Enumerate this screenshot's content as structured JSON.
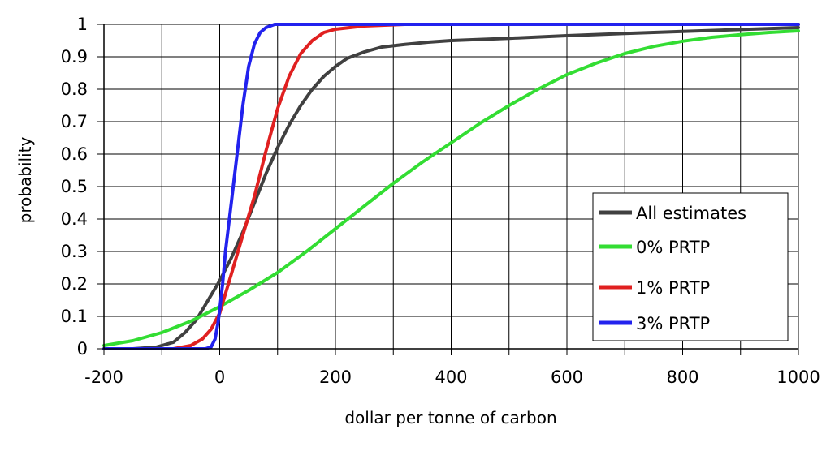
{
  "chart_data": {
    "type": "line",
    "title": "",
    "xlabel": "dollar per tonne of carbon",
    "ylabel": "probability",
    "xlim": [
      -200,
      1000
    ],
    "ylim": [
      0,
      1
    ],
    "grid": true,
    "legend_position": "lower-right",
    "x_ticks": [
      -200,
      -100,
      0,
      100,
      200,
      300,
      400,
      500,
      600,
      700,
      800,
      900,
      1000
    ],
    "x_tick_labels": [
      "-200",
      "0",
      "200",
      "400",
      "600",
      "800",
      "1000"
    ],
    "x_tick_label_values": [
      -200,
      0,
      200,
      400,
      600,
      800,
      1000
    ],
    "y_ticks": [
      0,
      0.1,
      0.2,
      0.3,
      0.4,
      0.5,
      0.6,
      0.7,
      0.8,
      0.9,
      1
    ],
    "y_tick_labels": [
      "0",
      "0.1",
      "0.2",
      "0.3",
      "0.4",
      "0.5",
      "0.6",
      "0.7",
      "0.8",
      "0.9",
      "1"
    ],
    "series": [
      {
        "name": "All estimates",
        "color": "#404040",
        "points": [
          [
            -200,
            0
          ],
          [
            -150,
            0
          ],
          [
            -110,
            0.005
          ],
          [
            -80,
            0.02
          ],
          [
            -60,
            0.05
          ],
          [
            -40,
            0.09
          ],
          [
            -20,
            0.15
          ],
          [
            0,
            0.21
          ],
          [
            20,
            0.28
          ],
          [
            40,
            0.36
          ],
          [
            60,
            0.45
          ],
          [
            80,
            0.54
          ],
          [
            100,
            0.62
          ],
          [
            120,
            0.69
          ],
          [
            140,
            0.75
          ],
          [
            160,
            0.8
          ],
          [
            180,
            0.84
          ],
          [
            200,
            0.87
          ],
          [
            220,
            0.895
          ],
          [
            250,
            0.915
          ],
          [
            280,
            0.93
          ],
          [
            320,
            0.938
          ],
          [
            360,
            0.945
          ],
          [
            400,
            0.95
          ],
          [
            500,
            0.957
          ],
          [
            600,
            0.965
          ],
          [
            700,
            0.972
          ],
          [
            800,
            0.978
          ],
          [
            900,
            0.984
          ],
          [
            1000,
            0.99
          ]
        ]
      },
      {
        "name": "0% PRTP",
        "color": "#33dd33",
        "points": [
          [
            -200,
            0.01
          ],
          [
            -150,
            0.025
          ],
          [
            -100,
            0.05
          ],
          [
            -50,
            0.085
          ],
          [
            0,
            0.13
          ],
          [
            50,
            0.18
          ],
          [
            100,
            0.235
          ],
          [
            150,
            0.3
          ],
          [
            200,
            0.37
          ],
          [
            250,
            0.44
          ],
          [
            300,
            0.51
          ],
          [
            350,
            0.575
          ],
          [
            400,
            0.635
          ],
          [
            450,
            0.695
          ],
          [
            500,
            0.75
          ],
          [
            550,
            0.8
          ],
          [
            600,
            0.845
          ],
          [
            650,
            0.88
          ],
          [
            700,
            0.91
          ],
          [
            750,
            0.932
          ],
          [
            800,
            0.948
          ],
          [
            850,
            0.96
          ],
          [
            900,
            0.968
          ],
          [
            950,
            0.975
          ],
          [
            1000,
            0.98
          ]
        ]
      },
      {
        "name": "1% PRTP",
        "color": "#e02020",
        "points": [
          [
            -200,
            0
          ],
          [
            -80,
            0
          ],
          [
            -50,
            0.01
          ],
          [
            -30,
            0.03
          ],
          [
            -15,
            0.06
          ],
          [
            0,
            0.11
          ],
          [
            10,
            0.17
          ],
          [
            20,
            0.23
          ],
          [
            35,
            0.32
          ],
          [
            50,
            0.41
          ],
          [
            60,
            0.47
          ],
          [
            80,
            0.61
          ],
          [
            100,
            0.74
          ],
          [
            120,
            0.84
          ],
          [
            140,
            0.91
          ],
          [
            160,
            0.95
          ],
          [
            180,
            0.975
          ],
          [
            200,
            0.985
          ],
          [
            250,
            0.995
          ],
          [
            320,
            1
          ],
          [
            1000,
            1
          ]
        ]
      },
      {
        "name": "3% PRTP",
        "color": "#2222ee",
        "points": [
          [
            -200,
            0
          ],
          [
            -25,
            0
          ],
          [
            -15,
            0.005
          ],
          [
            -8,
            0.03
          ],
          [
            -3,
            0.08
          ],
          [
            0,
            0.12
          ],
          [
            5,
            0.2
          ],
          [
            10,
            0.3
          ],
          [
            20,
            0.45
          ],
          [
            30,
            0.6
          ],
          [
            40,
            0.75
          ],
          [
            50,
            0.87
          ],
          [
            60,
            0.94
          ],
          [
            70,
            0.975
          ],
          [
            80,
            0.99
          ],
          [
            95,
            1
          ],
          [
            1000,
            1
          ]
        ]
      }
    ]
  }
}
